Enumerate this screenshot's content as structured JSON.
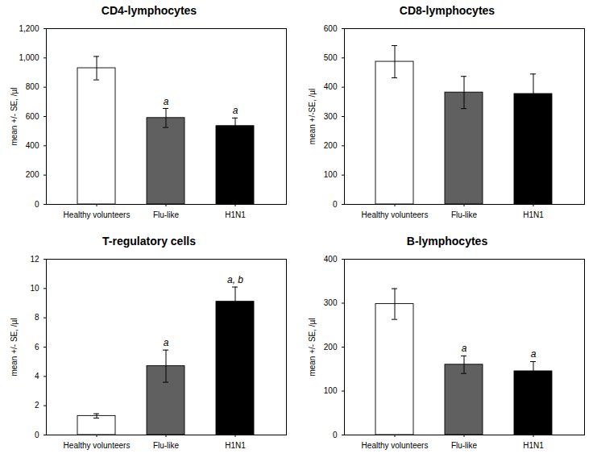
{
  "chart_data": [
    {
      "type": "bar",
      "title": "CD4-lymphocytes",
      "ylabel": "mean +/- SE, /µl",
      "categories": [
        "Healthy volunteers",
        "Flu-like",
        "H1N1"
      ],
      "values": [
        930,
        590,
        535
      ],
      "errors": [
        80,
        65,
        55
      ],
      "colors": [
        "white",
        "#606060",
        "black"
      ],
      "ylim": [
        0,
        1200
      ],
      "yticks": [
        0,
        200,
        400,
        600,
        800,
        1000,
        1200
      ],
      "annotations": [
        null,
        "a",
        "a"
      ],
      "grid": false
    },
    {
      "type": "bar",
      "title": "CD8-lymphocytes",
      "ylabel": "mean +/-SE, /µl",
      "categories": [
        "Healthy volunteers",
        "Flu-like",
        "H1N1"
      ],
      "values": [
        487,
        382,
        377
      ],
      "errors": [
        55,
        55,
        68
      ],
      "colors": [
        "white",
        "#606060",
        "black"
      ],
      "ylim": [
        0,
        600
      ],
      "yticks": [
        0,
        100,
        200,
        300,
        400,
        500,
        600
      ],
      "grid": false
    },
    {
      "type": "bar",
      "title": "T-regulatory cells",
      "ylabel": "mean +/- SE, /µl",
      "categories": [
        "Healthy volunteers",
        "Flu-like",
        "H1N1"
      ],
      "values": [
        1.3,
        4.7,
        9.1
      ],
      "errors": [
        0.15,
        1.1,
        1.0
      ],
      "colors": [
        "white",
        "#606060",
        "black"
      ],
      "ylim": [
        0,
        12
      ],
      "yticks": [
        0,
        2,
        4,
        6,
        8,
        10,
        12
      ],
      "annotations": [
        null,
        "a",
        "a, b"
      ],
      "grid": false
    },
    {
      "type": "bar",
      "title": "B-lymphocytes",
      "ylabel": "mean +/- SE, /µl",
      "categories": [
        "Healthy volunteers",
        "Flu-like",
        "H1N1"
      ],
      "values": [
        298,
        160,
        145
      ],
      "errors": [
        35,
        20,
        22
      ],
      "colors": [
        "white",
        "#606060",
        "black"
      ],
      "ylim": [
        0,
        400
      ],
      "yticks": [
        0,
        100,
        200,
        300,
        400
      ],
      "annotations": [
        null,
        "a",
        "a"
      ],
      "grid": false
    }
  ]
}
